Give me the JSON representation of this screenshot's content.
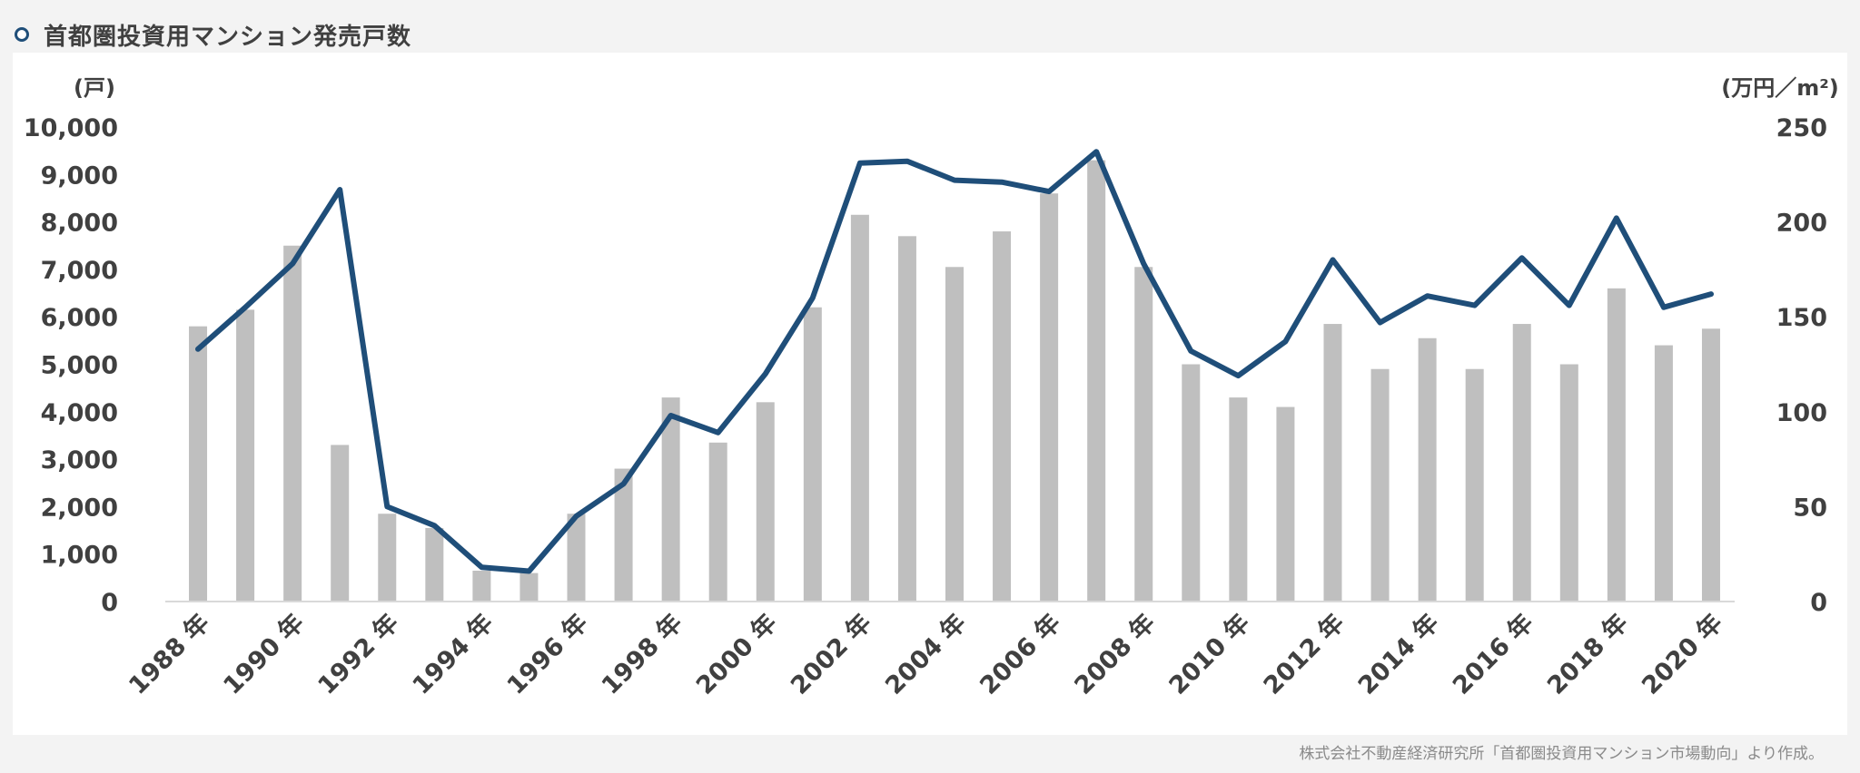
{
  "header": {
    "title": "首都圏投資用マンション発売戸数"
  },
  "source_note": "株式会社不動産経済研究所「首都圏投資用マンション市場動向」より作成。",
  "colors": {
    "bar": "#bfbfbf",
    "line": "#1f4e79",
    "axis_text": "#404040"
  },
  "chart_data": {
    "type": "bar",
    "title": "首都圏投資用マンション発売戸数",
    "left_axis_unit": "(戸)",
    "right_axis_unit": "(万円／m²)",
    "ylim_left": [
      0,
      10000
    ],
    "ylim_right": [
      0,
      250
    ],
    "left_ticks": [
      "0",
      "1,000",
      "2,000",
      "3,000",
      "4,000",
      "5,000",
      "6,000",
      "7,000",
      "8,000",
      "9,000",
      "10,000"
    ],
    "right_ticks": [
      "0",
      "50",
      "100",
      "150",
      "200",
      "250"
    ],
    "x_labels": [
      "1988 年",
      "1990 年",
      "1992 年",
      "1994 年",
      "1996 年",
      "1998 年",
      "2000 年",
      "2002 年",
      "2004 年",
      "2006 年",
      "2008 年",
      "2010 年",
      "2012 年",
      "2014 年",
      "2016 年",
      "2018 年",
      "2020 年"
    ],
    "years": [
      1988,
      1989,
      1990,
      1991,
      1992,
      1993,
      1994,
      1995,
      1996,
      1997,
      1998,
      1999,
      2000,
      2001,
      2002,
      2003,
      2004,
      2005,
      2006,
      2007,
      2008,
      2009,
      2010,
      2011,
      2012,
      2013,
      2014,
      2015,
      2016,
      2017,
      2018,
      2019,
      2020
    ],
    "series": [
      {
        "type": "bar",
        "axis": "left",
        "values": [
          5800,
          6150,
          7500,
          3300,
          1850,
          1550,
          650,
          600,
          1850,
          2800,
          4300,
          3350,
          4200,
          6200,
          8150,
          7700,
          7050,
          7800,
          8600,
          9300,
          7050,
          5000,
          4300,
          4100,
          5850,
          4900,
          5550,
          4900,
          5850,
          5000,
          6600,
          5400,
          5750
        ]
      },
      {
        "type": "line",
        "axis": "right",
        "values": [
          133,
          155,
          178,
          217,
          50,
          40,
          18,
          16,
          45,
          62,
          98,
          89,
          120,
          160,
          231,
          232,
          222,
          221,
          216,
          237,
          178,
          132,
          119,
          137,
          180,
          147,
          161,
          156,
          181,
          156,
          202,
          155,
          162
        ]
      }
    ]
  }
}
